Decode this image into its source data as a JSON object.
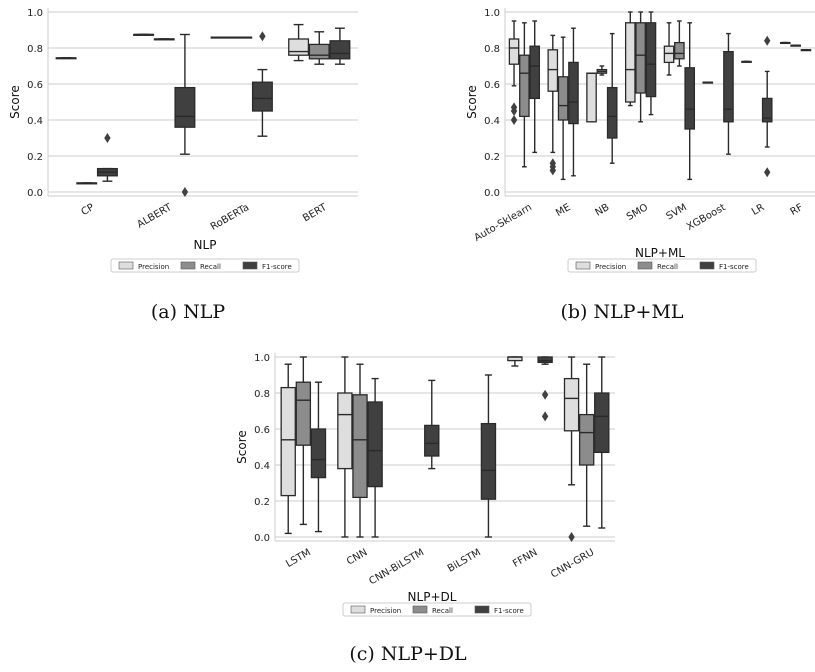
{
  "colors": {
    "precision": "#dedede",
    "recall": "#8c8c8c",
    "f1": "#404040",
    "grid": "#cccccc",
    "whisker": "#2a2a2a"
  },
  "legend_labels": [
    "Precision",
    "Recall",
    "F1-score"
  ],
  "chart_data": [
    {
      "type": "box",
      "caption": "(a) NLP",
      "xlabel": "NLP",
      "ylabel": "Score",
      "ylim": [
        0,
        1
      ],
      "yticks": [
        "0.0",
        "0.2",
        "0.4",
        "0.6",
        "0.8",
        "1.0"
      ],
      "grid": true,
      "legend_position": "bottom",
      "categories": [
        "CP",
        "ALBERT",
        "RoBERTa",
        "BERT"
      ],
      "series": [
        {
          "name": "Precision",
          "boxes": [
            {
              "low": 0.745,
              "q1": 0.745,
              "median": 0.745,
              "q3": 0.745,
              "high": 0.745,
              "outliers": []
            },
            {
              "low": 0.875,
              "q1": 0.875,
              "median": 0.875,
              "q3": 0.875,
              "high": 0.875,
              "outliers": []
            },
            {
              "low": 0.86,
              "q1": 0.86,
              "median": 0.86,
              "q3": 0.86,
              "high": 0.86,
              "outliers": []
            },
            {
              "low": 0.73,
              "q1": 0.76,
              "median": 0.78,
              "q3": 0.85,
              "high": 0.93,
              "outliers": []
            }
          ]
        },
        {
          "name": "Recall",
          "boxes": [
            {
              "low": 0.05,
              "q1": 0.05,
              "median": 0.05,
              "q3": 0.05,
              "high": 0.05,
              "outliers": []
            },
            {
              "low": 0.85,
              "q1": 0.85,
              "median": 0.85,
              "q3": 0.85,
              "high": 0.85,
              "outliers": []
            },
            {
              "low": 0.86,
              "q1": 0.86,
              "median": 0.86,
              "q3": 0.86,
              "high": 0.86,
              "outliers": []
            },
            {
              "low": 0.71,
              "q1": 0.74,
              "median": 0.76,
              "q3": 0.82,
              "high": 0.89,
              "outliers": []
            }
          ]
        },
        {
          "name": "F1-score",
          "boxes": [
            {
              "low": 0.06,
              "q1": 0.09,
              "median": 0.11,
              "q3": 0.13,
              "high": 0.13,
              "outliers": [
                0.3
              ]
            },
            {
              "low": 0.21,
              "q1": 0.36,
              "median": 0.42,
              "q3": 0.58,
              "high": 0.875,
              "outliers": [
                0.0
              ]
            },
            {
              "low": 0.31,
              "q1": 0.45,
              "median": 0.52,
              "q3": 0.61,
              "high": 0.68,
              "outliers": [
                0.865
              ]
            },
            {
              "low": 0.71,
              "q1": 0.74,
              "median": 0.77,
              "q3": 0.84,
              "high": 0.91,
              "outliers": []
            }
          ]
        }
      ]
    },
    {
      "type": "box",
      "caption": "(b) NLP+ML",
      "xlabel": "NLP+ML",
      "ylabel": "Score",
      "ylim": [
        0,
        1
      ],
      "yticks": [
        "0.0",
        "0.2",
        "0.4",
        "0.6",
        "0.8",
        "1.0"
      ],
      "grid": true,
      "legend_position": "bottom",
      "categories": [
        "Auto-Sklearn",
        "ME",
        "NB",
        "SMO",
        "SVM",
        "XGBoost",
        "LR",
        "RF"
      ],
      "series": [
        {
          "name": "Precision",
          "boxes": [
            {
              "low": 0.59,
              "q1": 0.71,
              "median": 0.8,
              "q3": 0.85,
              "high": 0.95,
              "outliers": [
                0.4,
                0.45,
                0.47
              ]
            },
            {
              "low": 0.22,
              "q1": 0.56,
              "median": 0.68,
              "q3": 0.79,
              "high": 0.87,
              "outliers": [
                0.12,
                0.14,
                0.16
              ]
            },
            {
              "low": 0.39,
              "q1": 0.39,
              "median": 0.66,
              "q3": 0.66,
              "high": 0.66,
              "outliers": []
            },
            {
              "low": 0.48,
              "q1": 0.5,
              "median": 0.68,
              "q3": 0.94,
              "high": 1.0,
              "outliers": []
            },
            {
              "low": 0.65,
              "q1": 0.72,
              "median": 0.77,
              "q3": 0.81,
              "high": 0.94,
              "outliers": []
            },
            {
              "low": 0.61,
              "q1": 0.61,
              "median": 0.61,
              "q3": 0.61,
              "high": 0.61,
              "outliers": []
            },
            {
              "low": 0.725,
              "q1": 0.725,
              "median": 0.725,
              "q3": 0.725,
              "high": 0.725,
              "outliers": []
            },
            {
              "low": 0.83,
              "q1": 0.83,
              "median": 0.83,
              "q3": 0.83,
              "high": 0.83,
              "outliers": []
            }
          ]
        },
        {
          "name": "Recall",
          "boxes": [
            {
              "low": 0.14,
              "q1": 0.42,
              "median": 0.66,
              "q3": 0.76,
              "high": 0.94,
              "outliers": []
            },
            {
              "low": 0.07,
              "q1": 0.4,
              "median": 0.48,
              "q3": 0.64,
              "high": 0.86,
              "outliers": []
            },
            {
              "low": 0.65,
              "q1": 0.66,
              "median": 0.67,
              "q3": 0.68,
              "high": 0.7,
              "outliers": []
            },
            {
              "low": 0.39,
              "q1": 0.55,
              "median": 0.76,
              "q3": 0.94,
              "high": 1.0,
              "outliers": []
            },
            {
              "low": 0.7,
              "q1": 0.74,
              "median": 0.77,
              "q3": 0.83,
              "high": 0.95,
              "outliers": []
            },
            null,
            null,
            {
              "low": 0.815,
              "q1": 0.815,
              "median": 0.815,
              "q3": 0.815,
              "high": 0.815,
              "outliers": []
            }
          ]
        },
        {
          "name": "F1-score",
          "boxes": [
            {
              "low": 0.22,
              "q1": 0.52,
              "median": 0.7,
              "q3": 0.81,
              "high": 0.95,
              "outliers": []
            },
            {
              "low": 0.09,
              "q1": 0.38,
              "median": 0.5,
              "q3": 0.72,
              "high": 0.91,
              "outliers": []
            },
            {
              "low": 0.16,
              "q1": 0.3,
              "median": 0.42,
              "q3": 0.58,
              "high": 0.88,
              "outliers": []
            },
            {
              "low": 0.43,
              "q1": 0.53,
              "median": 0.71,
              "q3": 0.94,
              "high": 1.0,
              "outliers": []
            },
            {
              "low": 0.07,
              "q1": 0.35,
              "median": 0.46,
              "q3": 0.69,
              "high": 0.94,
              "outliers": []
            },
            {
              "low": 0.21,
              "q1": 0.39,
              "median": 0.46,
              "q3": 0.78,
              "high": 0.88,
              "outliers": []
            },
            {
              "low": 0.25,
              "q1": 0.39,
              "median": 0.41,
              "q3": 0.52,
              "high": 0.67,
              "outliers": [
                0.84,
                0.11
              ]
            },
            {
              "low": 0.79,
              "q1": 0.79,
              "median": 0.79,
              "q3": 0.79,
              "high": 0.79,
              "outliers": []
            }
          ]
        }
      ]
    },
    {
      "type": "box",
      "caption": "(c) NLP+DL",
      "xlabel": "NLP+DL",
      "ylabel": "Score",
      "ylim": [
        0,
        1
      ],
      "yticks": [
        "0.0",
        "0.2",
        "0.4",
        "0.6",
        "0.8",
        "1.0"
      ],
      "grid": true,
      "legend_position": "bottom",
      "categories": [
        "LSTM",
        "CNN",
        "CNN-BiLSTM",
        "BiLSTM",
        "FFNN",
        "CNN-GRU"
      ],
      "series": [
        {
          "name": "Precision",
          "boxes": [
            {
              "low": 0.02,
              "q1": 0.23,
              "median": 0.54,
              "q3": 0.83,
              "high": 0.96,
              "outliers": []
            },
            {
              "low": 0.0,
              "q1": 0.38,
              "median": 0.68,
              "q3": 0.8,
              "high": 1.0,
              "outliers": []
            },
            null,
            null,
            {
              "low": 0.95,
              "q1": 0.98,
              "median": 1.0,
              "q3": 1.0,
              "high": 1.0,
              "outliers": []
            },
            {
              "low": 0.29,
              "q1": 0.59,
              "median": 0.77,
              "q3": 0.88,
              "high": 1.0,
              "outliers": [
                0.0
              ]
            }
          ]
        },
        {
          "name": "Recall",
          "boxes": [
            {
              "low": 0.07,
              "q1": 0.51,
              "median": 0.76,
              "q3": 0.86,
              "high": 1.0,
              "outliers": []
            },
            {
              "low": 0.0,
              "q1": 0.22,
              "median": 0.54,
              "q3": 0.79,
              "high": 0.96,
              "outliers": []
            },
            null,
            null,
            null,
            {
              "low": 0.06,
              "q1": 0.4,
              "median": 0.58,
              "q3": 0.68,
              "high": 0.96,
              "outliers": []
            }
          ]
        },
        {
          "name": "F1-score",
          "boxes": [
            {
              "low": 0.03,
              "q1": 0.33,
              "median": 0.43,
              "q3": 0.6,
              "high": 0.86,
              "outliers": []
            },
            {
              "low": 0.0,
              "q1": 0.28,
              "median": 0.48,
              "q3": 0.75,
              "high": 0.88,
              "outliers": []
            },
            {
              "low": 0.38,
              "q1": 0.45,
              "median": 0.52,
              "q3": 0.62,
              "high": 0.87,
              "outliers": []
            },
            {
              "low": 0.0,
              "q1": 0.21,
              "median": 0.37,
              "q3": 0.63,
              "high": 0.9,
              "outliers": []
            },
            {
              "low": 0.96,
              "q1": 0.97,
              "median": 0.98,
              "q3": 1.0,
              "high": 1.0,
              "outliers": [
                0.79,
                0.67
              ]
            },
            {
              "low": 0.05,
              "q1": 0.47,
              "median": 0.67,
              "q3": 0.8,
              "high": 1.0,
              "outliers": []
            }
          ]
        }
      ]
    }
  ]
}
